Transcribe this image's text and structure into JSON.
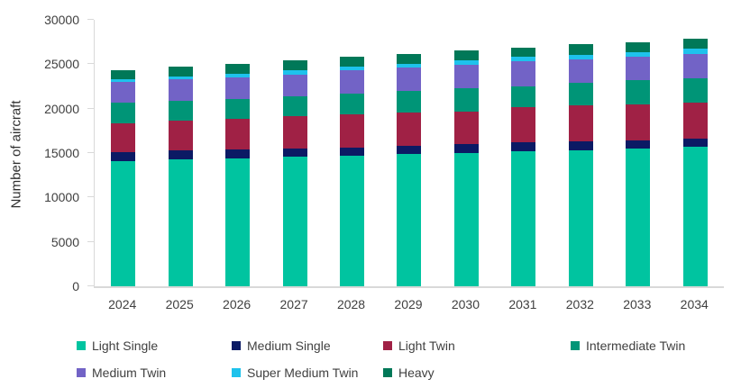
{
  "chart_data": {
    "type": "bar",
    "stacked": true,
    "title": "",
    "xlabel": "",
    "ylabel": "Number of aircraft",
    "ylim": [
      0,
      30000
    ],
    "yticks": [
      0,
      5000,
      10000,
      15000,
      20000,
      25000,
      30000
    ],
    "grid": false,
    "legend_position": "bottom",
    "categories": [
      "2024",
      "2025",
      "2026",
      "2027",
      "2028",
      "2029",
      "2030",
      "2031",
      "2032",
      "2033",
      "2034"
    ],
    "series": [
      {
        "name": "Light Single",
        "color": "#00C4A0",
        "values": [
          14100,
          14250,
          14400,
          14550,
          14700,
          14850,
          15050,
          15200,
          15350,
          15550,
          15700
        ]
      },
      {
        "name": "Medium Single",
        "color": "#0B1A64",
        "values": [
          1000,
          1050,
          1000,
          1000,
          950,
          1000,
          950,
          980,
          950,
          860,
          900
        ]
      },
      {
        "name": "Light Twin",
        "color": "#A02145",
        "values": [
          3250,
          3400,
          3500,
          3600,
          3750,
          3700,
          3700,
          3950,
          4050,
          4070,
          4100
        ]
      },
      {
        "name": "Intermediate Twin",
        "color": "#009577",
        "values": [
          2300,
          2200,
          2200,
          2200,
          2250,
          2450,
          2600,
          2400,
          2600,
          2700,
          2700
        ]
      },
      {
        "name": "Medium Twin",
        "color": "#7263C6",
        "values": [
          2350,
          2400,
          2450,
          2500,
          2700,
          2650,
          2680,
          2800,
          2580,
          2650,
          2770
        ]
      },
      {
        "name": "Super Medium Twin",
        "color": "#1EC2EC",
        "values": [
          350,
          350,
          350,
          450,
          430,
          430,
          450,
          500,
          570,
          500,
          580
        ]
      },
      {
        "name": "Heavy",
        "color": "#007858",
        "values": [
          1000,
          1050,
          1100,
          1100,
          1050,
          1090,
          1150,
          1050,
          1190,
          1190,
          1120
        ]
      }
    ],
    "totals": [
      24350,
      24700,
      25000,
      25400,
      25830,
      26170,
      26580,
      26880,
      27290,
      27520,
      27870
    ]
  },
  "axis": {
    "line_color": "#d9d9d9",
    "text_color": "#404040"
  }
}
